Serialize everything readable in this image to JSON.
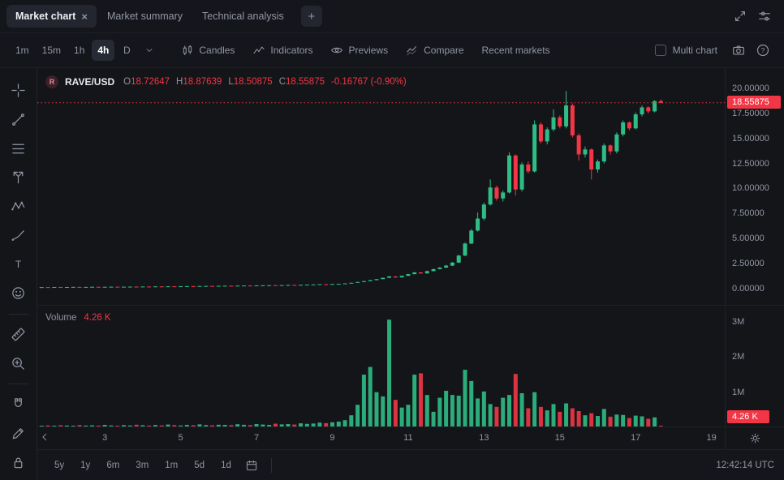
{
  "tabbar": {
    "tabs": [
      {
        "label": "Market chart",
        "active": true
      },
      {
        "label": "Market summary",
        "active": false
      },
      {
        "label": "Technical analysis",
        "active": false
      }
    ],
    "add_label": "+"
  },
  "toolbar": {
    "timeframes": [
      "1m",
      "15m",
      "1h",
      "4h",
      "D"
    ],
    "active_timeframe": "4h",
    "candles_label": "Candles",
    "indicators_label": "Indicators",
    "previews_label": "Previews",
    "compare_label": "Compare",
    "recent_markets_label": "Recent markets",
    "multi_chart_label": "Multi chart"
  },
  "legend": {
    "symbol_letter": "R",
    "symbol": "RAVE/USD",
    "o_label": "O",
    "o": "18.72647",
    "h_label": "H",
    "h": "18.87639",
    "l_label": "L",
    "l": "18.50875",
    "c_label": "C",
    "c": "18.55875",
    "change": "-0.16767 (-0.90%)"
  },
  "volume_legend": {
    "label": "Volume",
    "value": "4.26 K"
  },
  "bottombar": {
    "ranges": [
      "5y",
      "1y",
      "6m",
      "3m",
      "1m",
      "5d",
      "1d"
    ],
    "clock": "12:42:14 UTC"
  },
  "colors": {
    "green": "#2ebd85",
    "red": "#f23645",
    "badge": "#f23645",
    "dim": "#9096a3"
  },
  "chart_data": {
    "type": "candlestick",
    "symbol": "RAVE/USD",
    "timeframe": "4h",
    "title": "RAVE/USD 4h candles with volume",
    "x_axis": {
      "unit": "day of month",
      "ticks": [
        3,
        5,
        7,
        9,
        11,
        13,
        15,
        17,
        19
      ],
      "tick_labels": [
        "3",
        "5",
        "7",
        "9",
        "11",
        "13",
        "15",
        "17",
        "19"
      ],
      "range": [
        1.22,
        19.35
      ]
    },
    "price_axis": {
      "tick_values": [
        0,
        2.5,
        5,
        7.5,
        10,
        12.5,
        15,
        17.5,
        20
      ],
      "tick_labels": [
        "0.00000",
        "2.50000",
        "5.00000",
        "7.50000",
        "10.00000",
        "12.50000",
        "15.00000",
        "17.50000",
        "20.00000"
      ],
      "range": [
        -1.62,
        22.02
      ],
      "last_price": 18.55875,
      "last_price_label": "18.55875"
    },
    "volume_axis": {
      "tick_values": [
        1,
        2,
        3
      ],
      "tick_labels": [
        "1M",
        "2M",
        "3M"
      ],
      "unit": "millions",
      "range": [
        0,
        3.45
      ],
      "last_volume_label": "4.26 K"
    },
    "start_day": 1.1667,
    "step_days": 0.16667,
    "volume_unit": "thousands",
    "candles_format": [
      "open",
      "high",
      "low",
      "close",
      "volume_k"
    ],
    "candles": [
      [
        0.13,
        0.15,
        0.12,
        0.14,
        25
      ],
      [
        0.14,
        0.16,
        0.13,
        0.15,
        18
      ],
      [
        0.15,
        0.16,
        0.13,
        0.14,
        30
      ],
      [
        0.14,
        0.17,
        0.13,
        0.16,
        22
      ],
      [
        0.16,
        0.17,
        0.14,
        0.15,
        35
      ],
      [
        0.15,
        0.17,
        0.14,
        0.16,
        28
      ],
      [
        0.16,
        0.18,
        0.15,
        0.17,
        20
      ],
      [
        0.17,
        0.18,
        0.15,
        0.16,
        40
      ],
      [
        0.16,
        0.18,
        0.15,
        0.17,
        26
      ],
      [
        0.17,
        0.19,
        0.16,
        0.18,
        32
      ],
      [
        0.18,
        0.19,
        0.16,
        0.17,
        24
      ],
      [
        0.17,
        0.19,
        0.16,
        0.18,
        45
      ],
      [
        0.18,
        0.2,
        0.17,
        0.19,
        30
      ],
      [
        0.19,
        0.2,
        0.17,
        0.18,
        22
      ],
      [
        0.18,
        0.2,
        0.17,
        0.19,
        38
      ],
      [
        0.19,
        0.21,
        0.18,
        0.2,
        28
      ],
      [
        0.2,
        0.21,
        0.18,
        0.19,
        50
      ],
      [
        0.19,
        0.22,
        0.18,
        0.21,
        35
      ],
      [
        0.21,
        0.22,
        0.19,
        0.2,
        26
      ],
      [
        0.2,
        0.23,
        0.19,
        0.22,
        42
      ],
      [
        0.22,
        0.23,
        0.2,
        0.21,
        30
      ],
      [
        0.21,
        0.24,
        0.2,
        0.23,
        55
      ],
      [
        0.23,
        0.24,
        0.21,
        0.22,
        38
      ],
      [
        0.22,
        0.25,
        0.21,
        0.24,
        28
      ],
      [
        0.24,
        0.26,
        0.23,
        0.25,
        45
      ],
      [
        0.25,
        0.26,
        0.23,
        0.24,
        35
      ],
      [
        0.24,
        0.27,
        0.23,
        0.26,
        60
      ],
      [
        0.26,
        0.28,
        0.25,
        0.27,
        40
      ],
      [
        0.27,
        0.28,
        0.25,
        0.26,
        32
      ],
      [
        0.26,
        0.29,
        0.25,
        0.28,
        50
      ],
      [
        0.28,
        0.3,
        0.27,
        0.29,
        45
      ],
      [
        0.29,
        0.3,
        0.27,
        0.28,
        38
      ],
      [
        0.28,
        0.31,
        0.27,
        0.3,
        65
      ],
      [
        0.3,
        0.32,
        0.29,
        0.31,
        48
      ],
      [
        0.31,
        0.32,
        0.29,
        0.3,
        40
      ],
      [
        0.3,
        0.33,
        0.29,
        0.32,
        70
      ],
      [
        0.32,
        0.34,
        0.31,
        0.33,
        55
      ],
      [
        0.33,
        0.35,
        0.32,
        0.34,
        45
      ],
      [
        0.34,
        0.35,
        0.32,
        0.33,
        80
      ],
      [
        0.33,
        0.36,
        0.32,
        0.35,
        60
      ],
      [
        0.35,
        0.38,
        0.34,
        0.37,
        70
      ],
      [
        0.37,
        0.38,
        0.35,
        0.36,
        55
      ],
      [
        0.36,
        0.39,
        0.35,
        0.38,
        90
      ],
      [
        0.38,
        0.41,
        0.37,
        0.4,
        75
      ],
      [
        0.4,
        0.43,
        0.39,
        0.42,
        85
      ],
      [
        0.42,
        0.45,
        0.41,
        0.44,
        110
      ],
      [
        0.44,
        0.45,
        0.42,
        0.43,
        95
      ],
      [
        0.43,
        0.47,
        0.42,
        0.46,
        120
      ],
      [
        0.46,
        0.49,
        0.45,
        0.48,
        140
      ],
      [
        0.48,
        0.53,
        0.47,
        0.52,
        180
      ],
      [
        0.52,
        0.6,
        0.51,
        0.58,
        320
      ],
      [
        0.58,
        0.68,
        0.57,
        0.66,
        620
      ],
      [
        0.66,
        0.77,
        0.65,
        0.75,
        1480
      ],
      [
        0.75,
        0.87,
        0.74,
        0.85,
        1700
      ],
      [
        0.85,
        0.97,
        0.83,
        0.95,
        980
      ],
      [
        0.95,
        1.1,
        0.93,
        1.08,
        860
      ],
      [
        1.08,
        1.25,
        1.06,
        1.22,
        3050
      ],
      [
        1.22,
        1.24,
        1.08,
        1.12,
        760
      ],
      [
        1.12,
        1.31,
        1.1,
        1.28,
        540
      ],
      [
        1.28,
        1.48,
        1.26,
        1.45,
        620
      ],
      [
        1.45,
        1.66,
        1.43,
        1.62,
        1480
      ],
      [
        1.62,
        1.65,
        1.48,
        1.52,
        1520
      ],
      [
        1.52,
        1.79,
        1.5,
        1.75,
        900
      ],
      [
        1.75,
        1.99,
        1.72,
        1.95,
        420
      ],
      [
        1.95,
        2.15,
        1.92,
        2.1,
        820
      ],
      [
        2.1,
        2.36,
        2.06,
        2.3,
        1020
      ],
      [
        2.3,
        2.66,
        2.26,
        2.6,
        900
      ],
      [
        2.6,
        3.38,
        2.55,
        3.3,
        880
      ],
      [
        3.3,
        4.6,
        3.25,
        4.5,
        1620
      ],
      [
        4.5,
        5.95,
        4.45,
        5.8,
        1300
      ],
      [
        5.8,
        7.6,
        5.7,
        7.0,
        800
      ],
      [
        7.0,
        8.6,
        6.8,
        8.4,
        1000
      ],
      [
        8.4,
        10.9,
        8.3,
        10.1,
        640
      ],
      [
        10.1,
        10.3,
        8.8,
        9.0,
        560
      ],
      [
        9.0,
        9.8,
        8.7,
        9.6,
        820
      ],
      [
        9.6,
        13.6,
        9.5,
        13.3,
        900
      ],
      [
        13.3,
        13.4,
        9.3,
        9.9,
        1500
      ],
      [
        9.9,
        12.6,
        9.7,
        12.4,
        950
      ],
      [
        12.4,
        12.7,
        11.5,
        11.7,
        520
      ],
      [
        11.7,
        16.8,
        11.6,
        16.4,
        980
      ],
      [
        16.4,
        16.6,
        14.5,
        14.7,
        560
      ],
      [
        14.7,
        16.1,
        14.4,
        15.9,
        460
      ],
      [
        15.9,
        17.9,
        15.7,
        17.1,
        640
      ],
      [
        17.1,
        17.3,
        16.0,
        16.2,
        420
      ],
      [
        16.2,
        19.73,
        16.0,
        18.3,
        660
      ],
      [
        18.3,
        18.5,
        15.1,
        15.3,
        520
      ],
      [
        15.3,
        15.5,
        12.8,
        13.4,
        440
      ],
      [
        13.4,
        14.2,
        13.1,
        13.9,
        320
      ],
      [
        13.9,
        14.0,
        10.9,
        11.9,
        380
      ],
      [
        11.9,
        12.9,
        11.6,
        12.7,
        300
      ],
      [
        12.7,
        14.5,
        12.5,
        14.3,
        500
      ],
      [
        14.3,
        14.4,
        13.4,
        13.7,
        280
      ],
      [
        13.7,
        15.6,
        13.5,
        15.4,
        340
      ],
      [
        15.4,
        16.8,
        15.2,
        16.6,
        330
      ],
      [
        16.6,
        16.7,
        15.8,
        16.0,
        240
      ],
      [
        16.0,
        17.6,
        15.9,
        17.4,
        310
      ],
      [
        17.4,
        18.3,
        17.2,
        18.1,
        290
      ],
      [
        18.1,
        18.2,
        17.5,
        17.7,
        220
      ],
      [
        17.7,
        18.8,
        17.6,
        18.73,
        260
      ],
      [
        18.72647,
        18.87639,
        18.50875,
        18.55875,
        4.26
      ]
    ]
  }
}
